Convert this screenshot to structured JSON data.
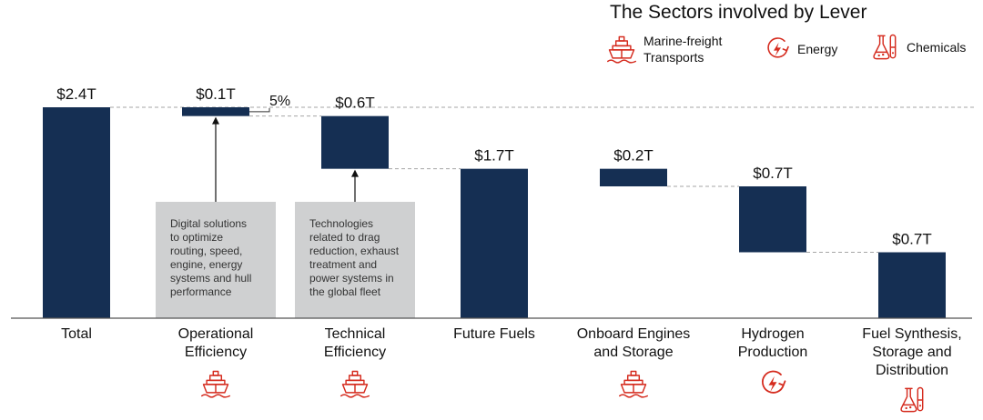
{
  "legend": {
    "title": "The Sectors involved by Lever",
    "items": [
      {
        "label": "Marine-freight Transports",
        "icon": "ship-icon"
      },
      {
        "label": "Energy",
        "icon": "energy-icon"
      },
      {
        "label": "Chemicals",
        "icon": "chemicals-icon"
      }
    ]
  },
  "colors": {
    "bar": "#152f53",
    "annotation_box": "#cfd0d1",
    "icon": "#d52b1e",
    "dashed": "#a5a5a5"
  },
  "chart_data": {
    "type": "bar",
    "subtype": "waterfall",
    "unit": "$T",
    "ylim": [
      0,
      2.4
    ],
    "categories": [
      "Total",
      "Operational Efficiency",
      "Technical Efficiency",
      "Future Fuels",
      "Onboard Engines and Storage",
      "Hydrogen Production",
      "Fuel Synthesis, Storage and Distribution"
    ],
    "category_lines": [
      [
        "Total"
      ],
      [
        "Operational",
        "Efficiency"
      ],
      [
        "Technical",
        "Efficiency"
      ],
      [
        "Future Fuels"
      ],
      [
        "Onboard Engines",
        "and Storage"
      ],
      [
        "Hydrogen",
        "Production"
      ],
      [
        "Fuel Synthesis,",
        "Storage and",
        "Distribution"
      ]
    ],
    "bars": [
      {
        "start": 0,
        "end": 2.4,
        "label": "$2.4T"
      },
      {
        "start": 2.3,
        "end": 2.4,
        "label": "$0.1T"
      },
      {
        "start": 1.7,
        "end": 2.3,
        "label": "$0.6T"
      },
      {
        "start": 0,
        "end": 1.7,
        "label": "$1.7T"
      },
      {
        "start": 1.5,
        "end": 1.7,
        "label": "$0.2T"
      },
      {
        "start": 0.75,
        "end": 1.5,
        "label": "$0.7T"
      },
      {
        "start": 0,
        "end": 0.75,
        "label": "$0.7T"
      }
    ],
    "annotations": [
      {
        "bar": 1,
        "text": "Digital solutions to optimize routing, speed, engine, energy systems and hull performance",
        "lines": [
          "Digital solutions",
          "to optimize",
          "routing, speed,",
          "engine, energy",
          "systems and hull",
          "performance"
        ]
      },
      {
        "bar": 2,
        "text": "Technologies related to drag reduction, exhaust treatment and power systems in the global fleet",
        "lines": [
          "Technologies",
          "related to drag",
          "reduction, exhaust",
          "treatment and",
          "power systems in",
          "the global fleet"
        ]
      }
    ],
    "callout": {
      "bar": 1,
      "text": "5%"
    },
    "sector_icons": [
      null,
      "ship-icon",
      "ship-icon",
      null,
      "ship-icon",
      "energy-icon",
      "chemicals-icon"
    ]
  }
}
